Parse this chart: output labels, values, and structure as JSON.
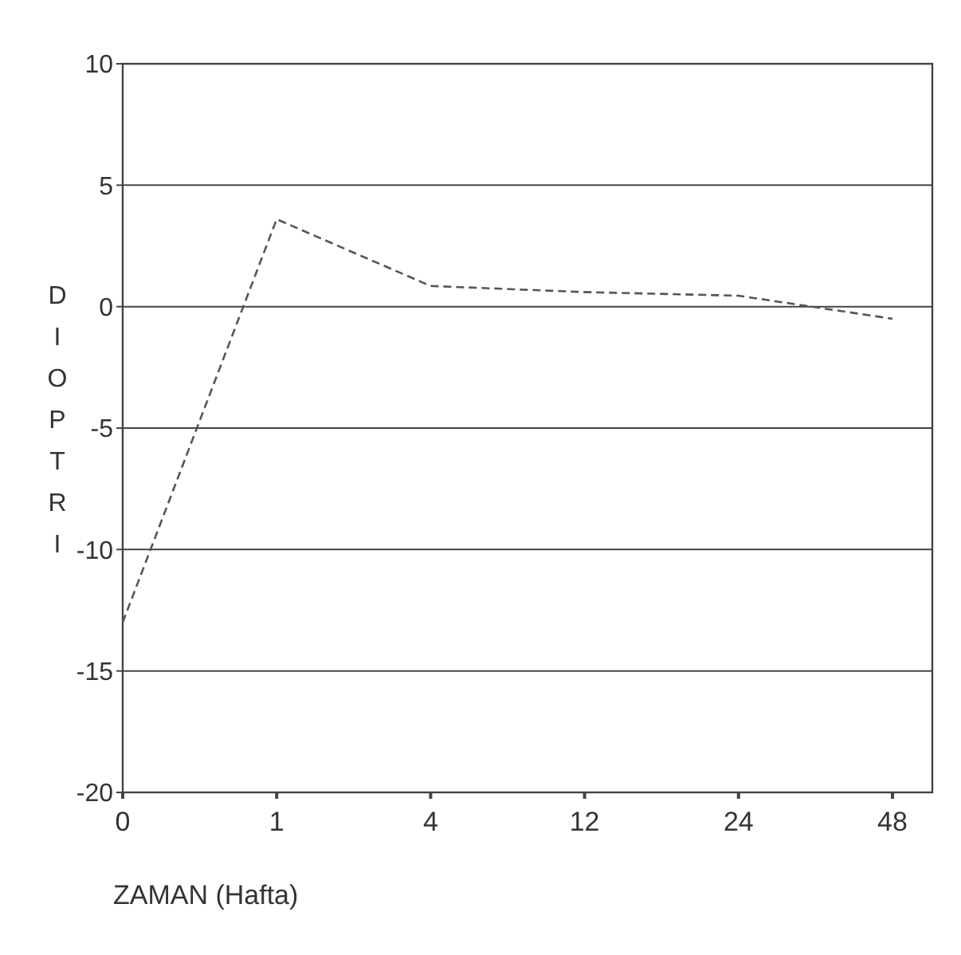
{
  "chart_data": {
    "type": "line",
    "xlabel": "ZAMAN (Hafta)",
    "ylabel": "DIOPTRI",
    "categories": [
      "0",
      "1",
      "4",
      "12",
      "24",
      "48"
    ],
    "series": [
      {
        "color": "#555555",
        "values": [
          -13,
          3.6,
          0.85,
          0.6,
          0.45,
          -0.5
        ]
      }
    ],
    "ylim": [
      -20,
      10
    ],
    "yticks": [
      -20,
      -15,
      -10,
      -5,
      0,
      5,
      10
    ],
    "grid": "y",
    "line_style": "dashed",
    "marker": "none"
  }
}
